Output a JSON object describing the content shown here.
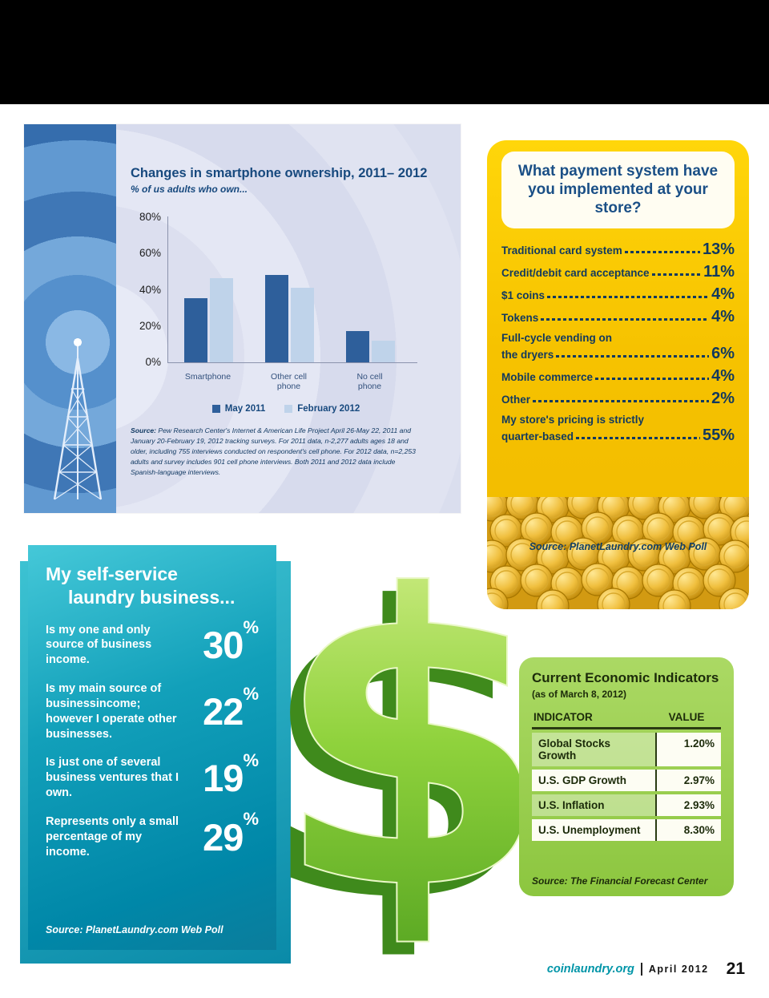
{
  "page": {
    "footer": {
      "site": "coinlaundry.org",
      "date": "April 2012",
      "page_number": "21"
    }
  },
  "chart_data": [
    {
      "type": "bar",
      "title": "Changes in smartphone ownership, 2011– 2012",
      "subtitle": "% of us adults who own...",
      "categories": [
        "Smartphone",
        "Other cell phone",
        "No cell phone"
      ],
      "series": [
        {
          "name": "May 2011",
          "color": "#2e5f9b",
          "values": [
            35,
            48,
            17
          ]
        },
        {
          "name": "February 2012",
          "color": "#bfd3ea",
          "values": [
            46,
            41,
            12
          ]
        }
      ],
      "ylim": [
        0,
        80
      ],
      "ytick_labels": [
        "80%",
        "60%",
        "40%",
        "20%",
        "0%"
      ],
      "grid": false,
      "legend_position": "bottom"
    }
  ],
  "ownership_panel": {
    "source_prefix": "Source:",
    "source_text": "Pew Research Center's Internet & American Life Project April 26-May 22, 2011 and January 20-February 19, 2012 tracking surveys. For 2011 data, n-2,277 adults ages 18 and older, including 755 interviews conducted on respondent's cell phone. For 2012 data, n=2,253 adults and survey includes 901 cell phone interviews. Both 2011 and 2012 data include Spanish-language interviews."
  },
  "payment_panel": {
    "question": "What payment system have you implemented at your store?",
    "items": [
      {
        "label": "Traditional card system",
        "value": "13%"
      },
      {
        "label": "Credit/debit card acceptance",
        "value": "11%"
      },
      {
        "label": "$1 coins",
        "value": "4%"
      },
      {
        "label": "Tokens",
        "value": "4%"
      },
      {
        "pre": "Full-cycle vending on",
        "label": "the dryers",
        "value": "6%"
      },
      {
        "label": "Mobile commerce",
        "value": "4%"
      },
      {
        "label": "Other",
        "value": "2%"
      },
      {
        "pre": "My store's pricing is strictly",
        "label": "quarter-based",
        "value": "55%"
      }
    ],
    "source": "Source: PlanetLaundry.com Web Poll"
  },
  "business_panel": {
    "title_line1": "My self-service",
    "title_line2": "laundry business...",
    "percent_symbol": "%",
    "items": [
      {
        "label": "Is my one and only source of business income.",
        "value": "30"
      },
      {
        "label": "Is my main source of businessincome; however I operate other businesses.",
        "value": "22"
      },
      {
        "label": "Is just one of several business ventures that I own.",
        "value": "19"
      },
      {
        "label": "Represents only a small percentage of my income.",
        "value": "29"
      }
    ],
    "source": "Source: PlanetLaundry.com Web Poll"
  },
  "econ_panel": {
    "title": "Current Economic Indicators",
    "subtitle": "(as of March 8, 2012)",
    "columns": [
      "INDICATOR",
      "VALUE"
    ],
    "rows": [
      {
        "indicator": "Global Stocks Growth",
        "value": "1.20%"
      },
      {
        "indicator": "U.S. GDP Growth",
        "value": "2.97%"
      },
      {
        "indicator": "U.S. Inflation",
        "value": "2.93%"
      },
      {
        "indicator": "U.S. Unemployment",
        "value": "8.30%"
      }
    ],
    "source": "Source: The Financial Forecast Center"
  },
  "colors": {
    "panel_blue_strip": "#3c74b4",
    "chart_bg": "#dcdfef",
    "yellow_panel": "#f6c200",
    "teal_panel": "#0095b0",
    "green_panel": "#8cc63f",
    "dollar_green": "#7dc832",
    "footer_site": "#0095a8"
  }
}
